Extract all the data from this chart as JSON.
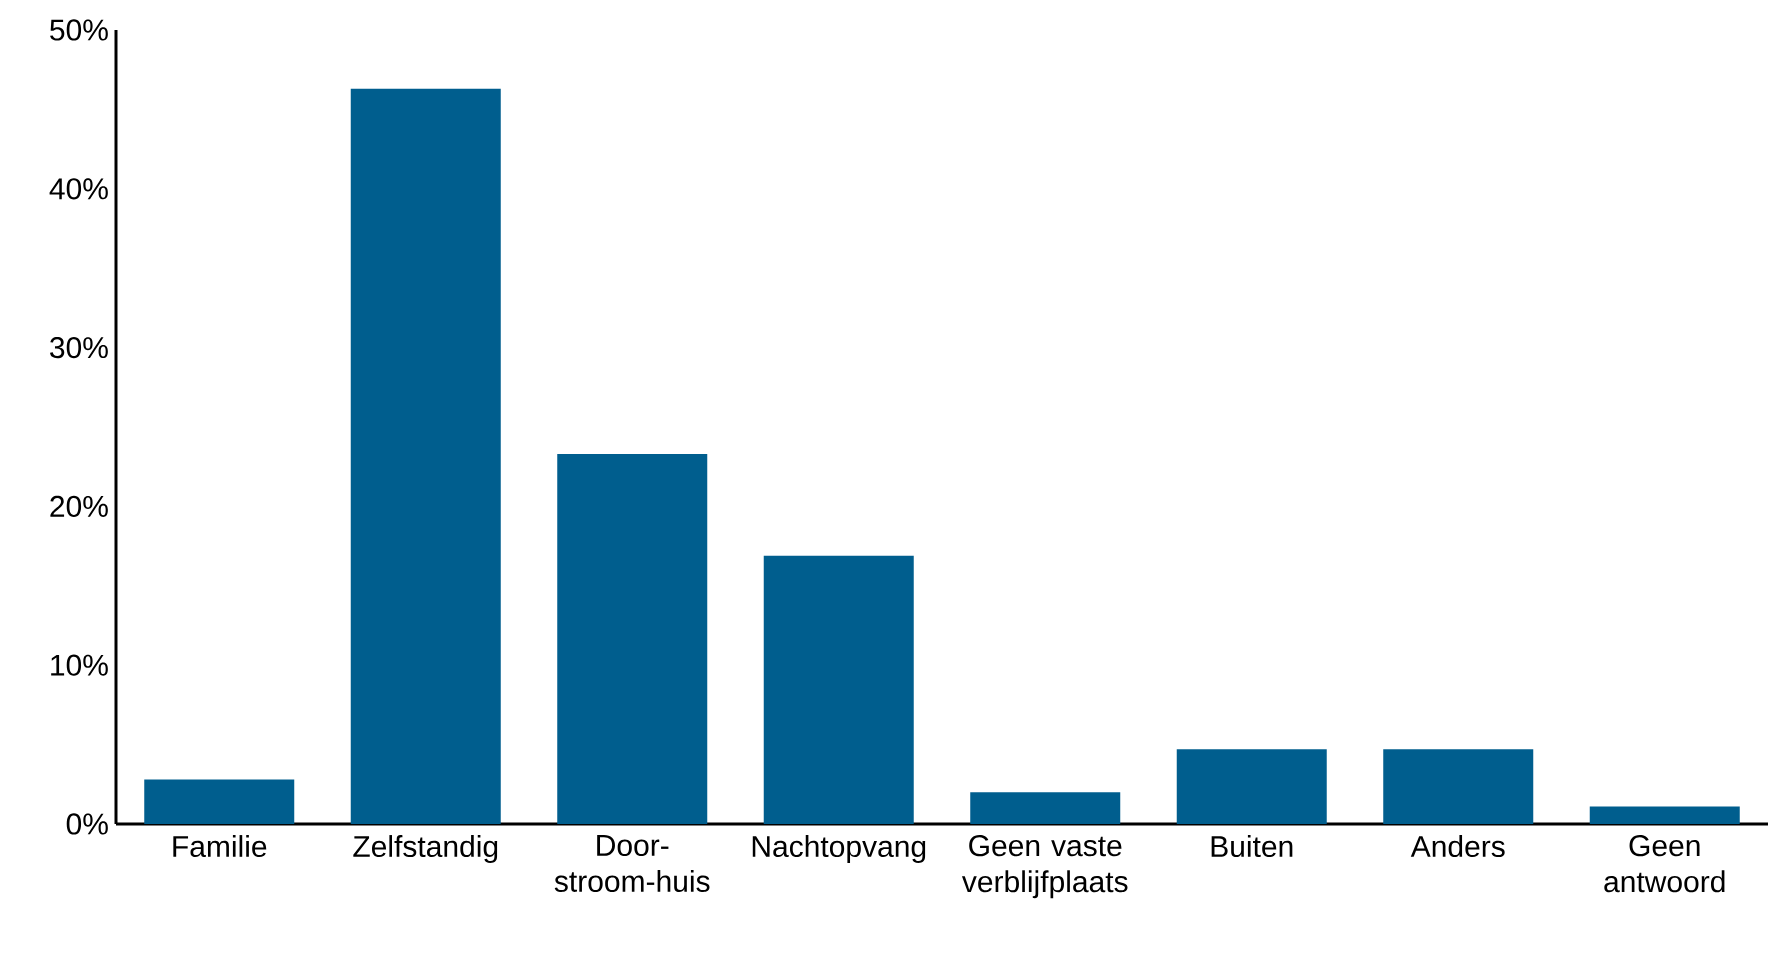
{
  "chart_data": {
    "type": "bar",
    "categories": [
      "Familie",
      "Zelfstandig",
      "Door-stroom-huis",
      "Nachtopvang",
      "Geen vaste verblijfplaats",
      "Buiten",
      "Anders",
      "Geen antwoord"
    ],
    "values": [
      2.8,
      46.3,
      23.3,
      16.9,
      2.0,
      4.7,
      4.7,
      1.1
    ],
    "color": "#005e8e",
    "ylim": [
      0,
      50
    ],
    "yticks": [
      {
        "value": 0,
        "label": "0%"
      },
      {
        "value": 10,
        "label": "10%"
      },
      {
        "value": 20,
        "label": "20%"
      },
      {
        "value": 30,
        "label": "30%"
      },
      {
        "value": 40,
        "label": "40%"
      },
      {
        "value": 50,
        "label": "50%"
      }
    ],
    "grid": false
  }
}
